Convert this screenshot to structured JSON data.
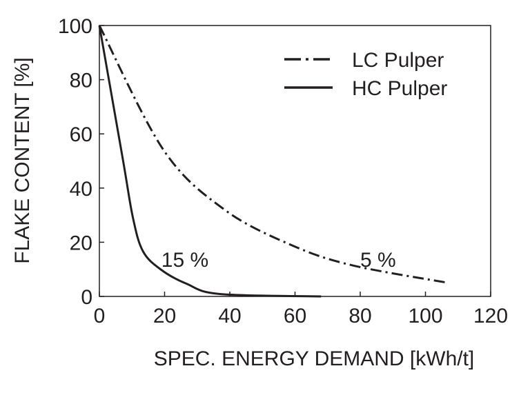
{
  "chart_data": {
    "type": "line",
    "title": "",
    "xlabel": "SPEC. ENERGY DEMAND [kWh/t]",
    "ylabel": "FLAKE CONTENT [%]",
    "xlim": [
      0,
      120
    ],
    "ylim": [
      0,
      100
    ],
    "xticks": [
      "0",
      "20",
      "40",
      "60",
      "80",
      "100",
      "120"
    ],
    "yticks": [
      "0",
      "20",
      "40",
      "60",
      "80",
      "100"
    ],
    "grid": false,
    "legend_position": "top-right",
    "series": [
      {
        "name": "LC Pulper",
        "style": "dash-dot",
        "color": "#231f20",
        "x": [
          0,
          19.7,
          38.4,
          58.8,
          77.5,
          107
        ],
        "y": [
          100,
          54,
          32,
          19,
          11.5,
          5
        ]
      },
      {
        "name": "HC Pulper",
        "style": "solid",
        "color": "#231f20",
        "x": [
          0,
          7.2,
          10.3,
          13.4,
          19,
          26.7,
          36.9,
          68
        ],
        "y": [
          100,
          50.6,
          29,
          16.6,
          9.8,
          4.7,
          0.9,
          0
        ]
      }
    ],
    "annotations": [
      {
        "text": "15 %",
        "x": 19,
        "y": 14
      },
      {
        "text": "5 %",
        "x": 80,
        "y": 14
      }
    ]
  }
}
